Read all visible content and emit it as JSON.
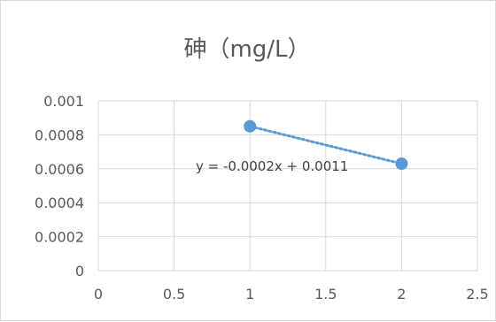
{
  "chart_data": {
    "type": "scatter",
    "title": "砷（mg/L）",
    "xlabel": "",
    "ylabel": "",
    "xlim": [
      0,
      2.5
    ],
    "ylim": [
      0,
      0.001
    ],
    "x_ticks": [
      "0",
      "0.5",
      "1",
      "1.5",
      "2",
      "2.5"
    ],
    "y_ticks": [
      "0",
      "0.0002",
      "0.0004",
      "0.0006",
      "0.0008",
      "0.001"
    ],
    "grid": true,
    "legend": "none",
    "series": [
      {
        "points": [
          {
            "x": 1,
            "y": 0.00085
          },
          {
            "x": 2,
            "y": 0.00063
          }
        ],
        "color": "#5b9bd5",
        "trendline": {
          "type": "linear",
          "style": "dotted",
          "equation": "y = -0.0002x + 0.0011"
        }
      }
    ]
  }
}
